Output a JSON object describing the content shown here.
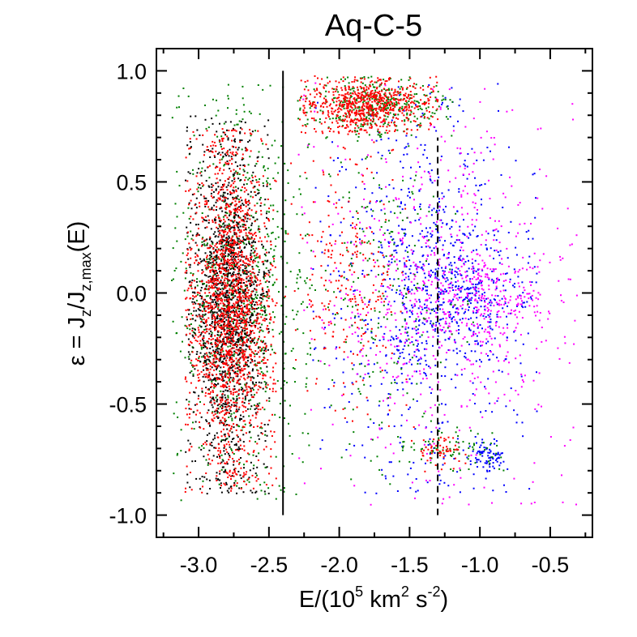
{
  "chart_data": {
    "type": "scatter",
    "title": "Aq-C-5",
    "xlabel": {
      "prefix": "E/(10",
      "sup1": "5",
      "mid": " km",
      "sup2": "2",
      "mid2": " s",
      "sup3": "-2",
      "suffix": ")"
    },
    "ylabel": {
      "prefix": "ε =  J",
      "sub1": "z",
      "mid": "/J",
      "sub2": "z,max",
      "suffix": "(E)"
    },
    "xlim": [
      -3.3,
      -0.2
    ],
    "ylim": [
      -1.1,
      1.1
    ],
    "xticks": [
      -3.0,
      -2.5,
      -2.0,
      -1.5,
      -1.0,
      -0.5
    ],
    "xtick_labels": [
      "-3.0",
      "-2.5",
      "-2.0",
      "-1.5",
      "-1.0",
      "-0.5"
    ],
    "yticks": [
      -1.0,
      -0.5,
      0.0,
      0.5,
      1.0
    ],
    "ytick_labels": [
      "-1.0",
      "-0.5",
      "0.0",
      "0.5",
      "1.0"
    ],
    "grid": false,
    "legend": "none",
    "reference_lines": [
      {
        "x": -2.4,
        "y_range": [
          -1.0,
          1.0
        ],
        "style": "solid",
        "color": "#000000"
      },
      {
        "x": -1.3,
        "y_range": [
          -1.0,
          0.7
        ],
        "style": "dashed",
        "color": "#000000"
      }
    ],
    "series": [
      {
        "color": "#0000ff",
        "clusters": [
          {
            "x": [
              -2.2,
              -0.6
            ],
            "y": [
              -0.9,
              0.95
            ],
            "n": 700
          },
          {
            "x": [
              -1.6,
              -0.6
            ],
            "y": [
              -0.3,
              0.3
            ],
            "n": 300
          },
          {
            "x": [
              -1.1,
              -0.8
            ],
            "y": [
              -0.8,
              -0.65
            ],
            "n": 80
          }
        ]
      },
      {
        "color": "#ff00ff",
        "clusters": [
          {
            "x": [
              -2.3,
              -0.3
            ],
            "y": [
              -0.95,
              0.95
            ],
            "n": 700
          },
          {
            "x": [
              -1.5,
              -0.5
            ],
            "y": [
              -0.2,
              0.2
            ],
            "n": 200
          }
        ]
      },
      {
        "color": "#008000",
        "clusters": [
          {
            "x": [
              -3.2,
              -2.2
            ],
            "y": [
              -0.95,
              0.95
            ],
            "n": 800
          },
          {
            "x": [
              -2.3,
              -1.2
            ],
            "y": [
              0.7,
              0.98
            ],
            "n": 350
          },
          {
            "x": [
              -2.4,
              -1.0
            ],
            "y": [
              -0.9,
              0.9
            ],
            "n": 250
          },
          {
            "x": [
              -1.6,
              -0.8
            ],
            "y": [
              -0.8,
              -0.6
            ],
            "n": 80
          }
        ]
      },
      {
        "color": "#000000",
        "clusters": [
          {
            "x": [
              -3.1,
              -2.5
            ],
            "y": [
              -0.9,
              0.8
            ],
            "n": 1500
          }
        ]
      },
      {
        "color": "#ff0000",
        "clusters": [
          {
            "x": [
              -3.1,
              -2.45
            ],
            "y": [
              -0.9,
              0.75
            ],
            "n": 1800
          },
          {
            "x": [
              -2.3,
              -1.3
            ],
            "y": [
              0.72,
              0.98
            ],
            "n": 700
          },
          {
            "x": [
              -2.4,
              -1.5
            ],
            "y": [
              -0.6,
              0.8
            ],
            "n": 250
          },
          {
            "x": [
              -1.5,
              -1.1
            ],
            "y": [
              -0.8,
              -0.6
            ],
            "n": 60
          }
        ]
      }
    ]
  }
}
